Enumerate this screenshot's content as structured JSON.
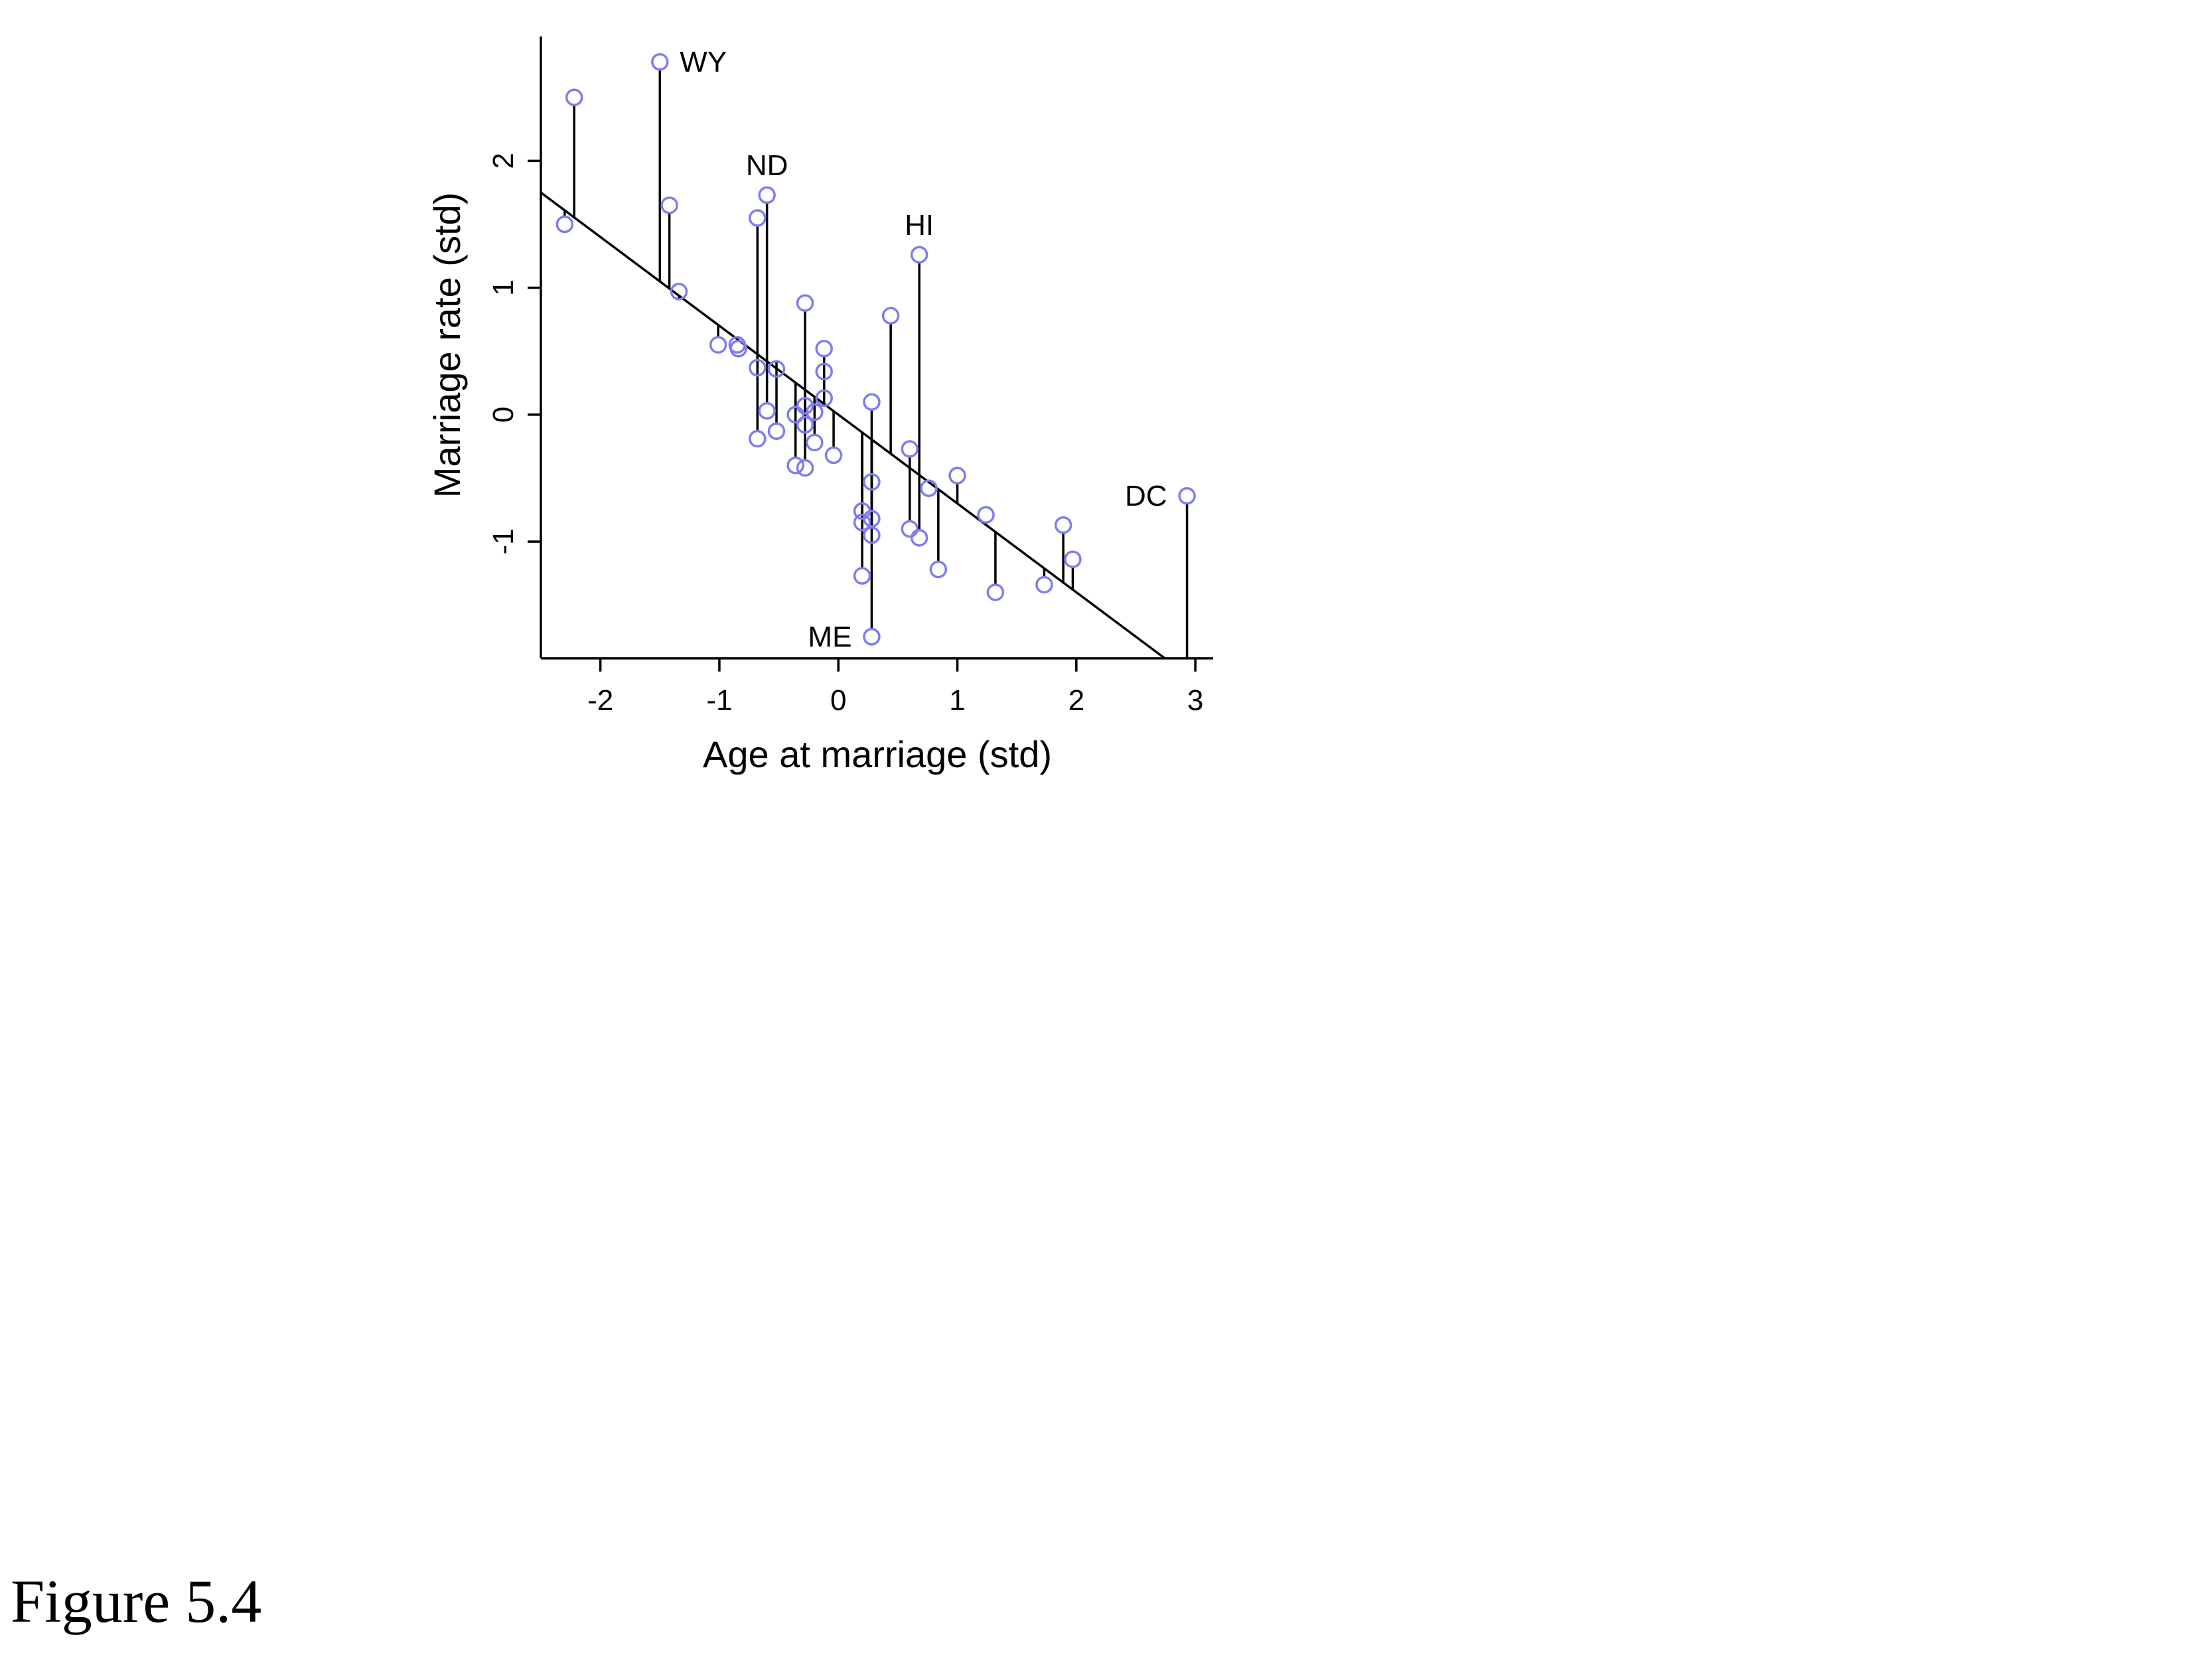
{
  "figure": {
    "caption": "Figure 5.4"
  },
  "chart_data": {
    "type": "scatter",
    "xlabel": "Age at marriage (std)",
    "ylabel": "Marriage rate (std)",
    "xlim": [
      -2.5,
      3.15
    ],
    "ylim": [
      -1.92,
      2.98
    ],
    "xticks": [
      -2,
      -1,
      0,
      1,
      2,
      3
    ],
    "yticks": [
      -1,
      0,
      1,
      2
    ],
    "grid": false,
    "point_color": "#7d7df0",
    "fit_line": {
      "intercept": 0.0,
      "slope": -0.7
    },
    "points": [
      {
        "x": -2.22,
        "y": 2.5,
        "label": ""
      },
      {
        "x": -2.3,
        "y": 1.5,
        "label": ""
      },
      {
        "x": -1.5,
        "y": 2.78,
        "label": "WY"
      },
      {
        "x": -1.42,
        "y": 1.65,
        "label": ""
      },
      {
        "x": -1.34,
        "y": 0.97,
        "label": ""
      },
      {
        "x": -1.01,
        "y": 0.55,
        "label": ""
      },
      {
        "x": -0.85,
        "y": 0.55,
        "label": ""
      },
      {
        "x": -0.84,
        "y": 0.52,
        "label": ""
      },
      {
        "x": -0.68,
        "y": 1.55,
        "label": ""
      },
      {
        "x": -0.6,
        "y": 1.73,
        "label": "ND"
      },
      {
        "x": -0.68,
        "y": 0.37,
        "label": ""
      },
      {
        "x": -0.52,
        "y": 0.36,
        "label": ""
      },
      {
        "x": -0.6,
        "y": 0.03,
        "label": ""
      },
      {
        "x": -0.68,
        "y": -0.19,
        "label": ""
      },
      {
        "x": -0.52,
        "y": -0.13,
        "label": ""
      },
      {
        "x": -0.36,
        "y": 0.0,
        "label": ""
      },
      {
        "x": -0.28,
        "y": 0.07,
        "label": ""
      },
      {
        "x": -0.28,
        "y": -0.08,
        "label": ""
      },
      {
        "x": -0.2,
        "y": 0.02,
        "label": ""
      },
      {
        "x": -0.2,
        "y": -0.22,
        "label": ""
      },
      {
        "x": -0.36,
        "y": -0.4,
        "label": ""
      },
      {
        "x": -0.28,
        "y": -0.42,
        "label": ""
      },
      {
        "x": -0.28,
        "y": 0.88,
        "label": ""
      },
      {
        "x": -0.12,
        "y": 0.52,
        "label": ""
      },
      {
        "x": -0.12,
        "y": 0.34,
        "label": ""
      },
      {
        "x": -0.12,
        "y": 0.13,
        "label": ""
      },
      {
        "x": -0.04,
        "y": -0.32,
        "label": ""
      },
      {
        "x": 0.28,
        "y": 0.1,
        "label": ""
      },
      {
        "x": 0.44,
        "y": 0.78,
        "label": ""
      },
      {
        "x": 0.28,
        "y": -0.53,
        "label": ""
      },
      {
        "x": 0.2,
        "y": -0.76,
        "label": ""
      },
      {
        "x": 0.2,
        "y": -0.85,
        "label": ""
      },
      {
        "x": 0.28,
        "y": -0.82,
        "label": ""
      },
      {
        "x": 0.28,
        "y": -0.95,
        "label": ""
      },
      {
        "x": 0.2,
        "y": -1.27,
        "label": ""
      },
      {
        "x": 0.28,
        "y": -1.75,
        "label": "ME"
      },
      {
        "x": 0.6,
        "y": -0.27,
        "label": ""
      },
      {
        "x": 0.6,
        "y": -0.9,
        "label": ""
      },
      {
        "x": 0.68,
        "y": -0.97,
        "label": ""
      },
      {
        "x": 0.68,
        "y": 1.26,
        "label": "HI"
      },
      {
        "x": 0.76,
        "y": -0.58,
        "label": ""
      },
      {
        "x": 0.84,
        "y": -1.22,
        "label": ""
      },
      {
        "x": 1.0,
        "y": -0.48,
        "label": ""
      },
      {
        "x": 1.24,
        "y": -0.79,
        "label": ""
      },
      {
        "x": 1.32,
        "y": -1.4,
        "label": ""
      },
      {
        "x": 1.73,
        "y": -1.34,
        "label": ""
      },
      {
        "x": 1.89,
        "y": -0.87,
        "label": ""
      },
      {
        "x": 1.97,
        "y": -1.14,
        "label": ""
      },
      {
        "x": 2.93,
        "y": -0.64,
        "label": "DC"
      }
    ],
    "label_placement": {
      "WY": "right",
      "ND": "above",
      "HI": "above",
      "ME": "left",
      "DC": "left"
    }
  }
}
